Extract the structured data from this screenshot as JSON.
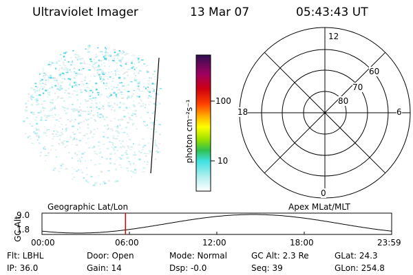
{
  "header": {
    "title": "Ultraviolet Imager",
    "date": "13 Mar 07",
    "time": "05:43:43 UT"
  },
  "colorbar": {
    "unit_label": "photon cm⁻²s⁻¹",
    "ticks": [
      "100",
      "10"
    ],
    "scale": "log",
    "colors": [
      "#ffffff",
      "#b8f0f0",
      "#40e0e0",
      "#30c050",
      "#9be000",
      "#ffff00",
      "#ffb000",
      "#ff4000",
      "#d00010",
      "#a00060",
      "#301050"
    ]
  },
  "polar": {
    "lat_labels": [
      "60",
      "70",
      "80"
    ],
    "mlt_labels": {
      "top": "12",
      "bottom": "0",
      "left": "18",
      "right": "6"
    }
  },
  "timeline": {
    "ylabel": "GC Alt",
    "ymax": "9.0",
    "ymin": "1.8",
    "left_caption": "Geographic Lat/Lon",
    "right_caption": "Apex MLat/MLT",
    "x_ticks": [
      "00:00",
      "06:00",
      "12:00",
      "18:00",
      "23:59"
    ],
    "current_time_hours": 5.73
  },
  "info": {
    "flt": "Flt: LBHL",
    "door": "Door: Open",
    "mode": "Mode: Normal",
    "gcalt": "GC Alt: 2.3 Re",
    "glat": "GLat:  24.3",
    "ip": "IP: 36.0",
    "gain": "Gain: 14",
    "dsp": "Dsp:   -0.0",
    "seq": "Seq: 39",
    "glon": "GLon: 254.8"
  }
}
